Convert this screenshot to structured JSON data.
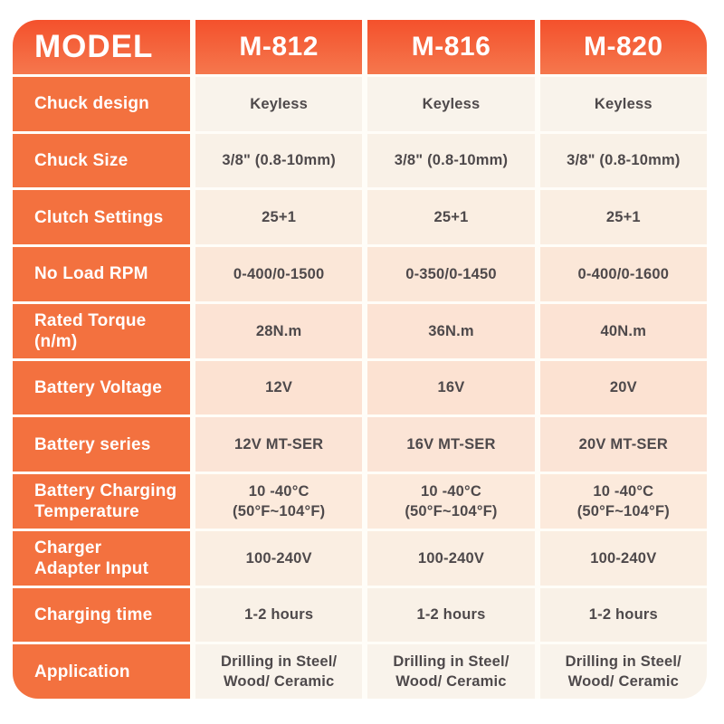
{
  "colors": {
    "header_orange_top": "#f4512c",
    "header_orange_bottom": "#f5774d",
    "label_orange": "#f3713f",
    "row_cream": "#f9f3eb",
    "row_peach": "#fce2d2",
    "value_text": "#4e494b",
    "header_text": "#ffffff"
  },
  "table": {
    "header": {
      "model_label": "MODEL",
      "columns": [
        "M-812",
        "M-816",
        "M-820"
      ]
    },
    "rows": [
      {
        "label": "Chuck design",
        "values": [
          "Keyless",
          "Keyless",
          "Keyless"
        ]
      },
      {
        "label": "Chuck Size",
        "values": [
          "3/8\" (0.8-10mm)",
          "3/8\" (0.8-10mm)",
          "3/8\" (0.8-10mm)"
        ]
      },
      {
        "label": "Clutch Settings",
        "values": [
          "25+1",
          "25+1",
          "25+1"
        ]
      },
      {
        "label": "No Load RPM",
        "values": [
          "0-400/0-1500",
          "0-350/0-1450",
          "0-400/0-1600"
        ]
      },
      {
        "label": "Rated Torque\n(n/m)",
        "values": [
          "28N.m",
          "36N.m",
          "40N.m"
        ]
      },
      {
        "label": "Battery Voltage",
        "values": [
          "12V",
          "16V",
          "20V"
        ]
      },
      {
        "label": "Battery series",
        "values": [
          "12V MT-SER",
          "16V MT-SER",
          "20V MT-SER"
        ]
      },
      {
        "label": "Battery Charging\nTemperature",
        "values": [
          "10 -40°C\n(50°F~104°F)",
          "10 -40°C\n(50°F~104°F)",
          "10 -40°C\n(50°F~104°F)"
        ]
      },
      {
        "label": "Charger\nAdapter Input",
        "values": [
          "100-240V",
          "100-240V",
          "100-240V"
        ]
      },
      {
        "label": "Charging time",
        "values": [
          "1-2 hours",
          "1-2 hours",
          "1-2 hours"
        ]
      },
      {
        "label": "Application",
        "values": [
          "Drilling in Steel/\nWood/ Ceramic",
          "Drilling in Steel/\nWood/ Ceramic",
          "Drilling in Steel/\nWood/ Ceramic"
        ]
      }
    ]
  }
}
